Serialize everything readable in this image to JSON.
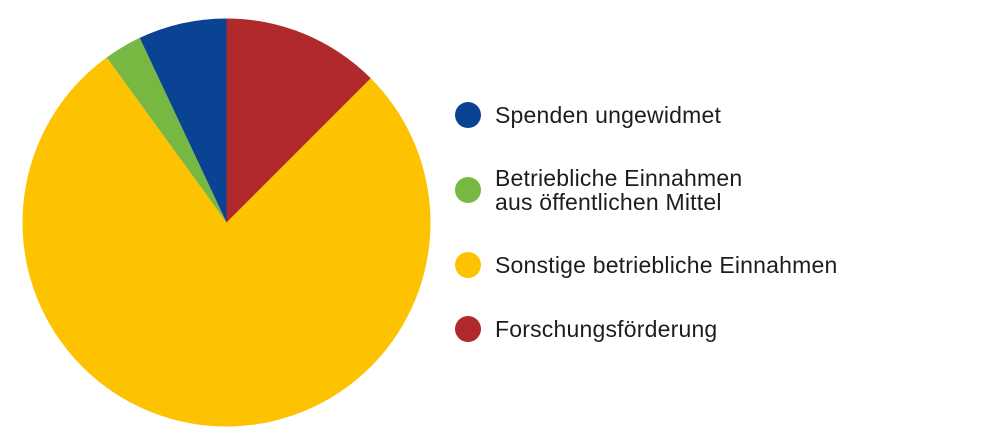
{
  "chart_data": {
    "type": "pie",
    "title": "",
    "categories": [
      "Spenden ungewidmet",
      "Betriebliche Einnahmen aus öffentlichen Mittel",
      "Sonstige betriebliche Einnahmen",
      "Forschungsförderung"
    ],
    "values": [
      7,
      3,
      77.5,
      12.5
    ],
    "unit": "percent",
    "colors": [
      "#0b4394",
      "#77b843",
      "#fdc300",
      "#b02a2b"
    ],
    "start_angle_deg": 0,
    "direction": "counterclockwise",
    "legend_position": "right",
    "labels_on_slices": false
  },
  "legend": {
    "text_color": "#1d1d1b",
    "items": [
      {
        "label": "Spenden ungewidmet",
        "color": "#0b4394"
      },
      {
        "label": "Betriebliche Einnahmen\naus öffentlichen Mittel",
        "color": "#77b843"
      },
      {
        "label": "Sonstige betriebliche Einnahmen",
        "color": "#fdc300"
      },
      {
        "label": "Forschungsförderung",
        "color": "#b02a2b"
      }
    ]
  }
}
